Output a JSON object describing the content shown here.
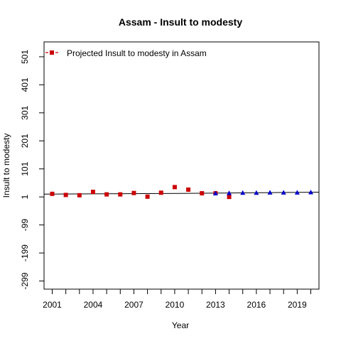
{
  "chart_data": {
    "type": "scatter",
    "title": "Assam  -  Insult to modesty",
    "xlabel": "Year",
    "ylabel": "Insult to modesty",
    "xlim": [
      2000.4,
      2020.6
    ],
    "ylim": [
      -328,
      554
    ],
    "x_ticks": [
      2001,
      2002,
      2003,
      2004,
      2005,
      2006,
      2007,
      2008,
      2009,
      2010,
      2011,
      2012,
      2013,
      2014,
      2015,
      2016,
      2017,
      2018,
      2019,
      2020
    ],
    "x_tick_labels": [
      "2001",
      "2004",
      "2007",
      "2010",
      "2013",
      "2016",
      "2019"
    ],
    "x_tick_label_values": [
      2001,
      2004,
      2007,
      2010,
      2013,
      2016,
      2019
    ],
    "y_ticks": [
      -299,
      -199,
      -99,
      1,
      101,
      201,
      301,
      401,
      501
    ],
    "y_tick_labels": [
      "-299",
      "-199",
      "-99",
      "1",
      "101",
      "201",
      "301",
      "401",
      "501"
    ],
    "legend": {
      "label": "Projected  Insult to modesty  in  Assam",
      "position": "top-left"
    },
    "series": [
      {
        "marker": "square",
        "color": "#cc0000",
        "points": [
          [
            2001,
            12
          ],
          [
            2002,
            8
          ],
          [
            2003,
            7
          ],
          [
            2004,
            19
          ],
          [
            2005,
            10
          ],
          [
            2006,
            10
          ],
          [
            2007,
            15
          ],
          [
            2008,
            2
          ],
          [
            2009,
            16
          ],
          [
            2010,
            36
          ],
          [
            2011,
            27
          ],
          [
            2012,
            14
          ],
          [
            2013,
            14
          ],
          [
            2014,
            1
          ]
        ]
      },
      {
        "marker": "triangle",
        "color": "#0000cc",
        "points": [
          [
            2013,
            14
          ],
          [
            2014,
            15
          ],
          [
            2015,
            16
          ],
          [
            2016,
            16
          ],
          [
            2017,
            17
          ],
          [
            2018,
            17
          ],
          [
            2019,
            17
          ],
          [
            2020,
            18
          ]
        ]
      }
    ],
    "trend_line": {
      "segments": [
        {
          "x0": 2000.4,
          "y0": 11,
          "x1": 2012,
          "y1": 14
        },
        {
          "x0": 2012,
          "y0": 14,
          "x1": 2020.6,
          "y1": 18
        }
      ],
      "color": "#000000"
    }
  }
}
